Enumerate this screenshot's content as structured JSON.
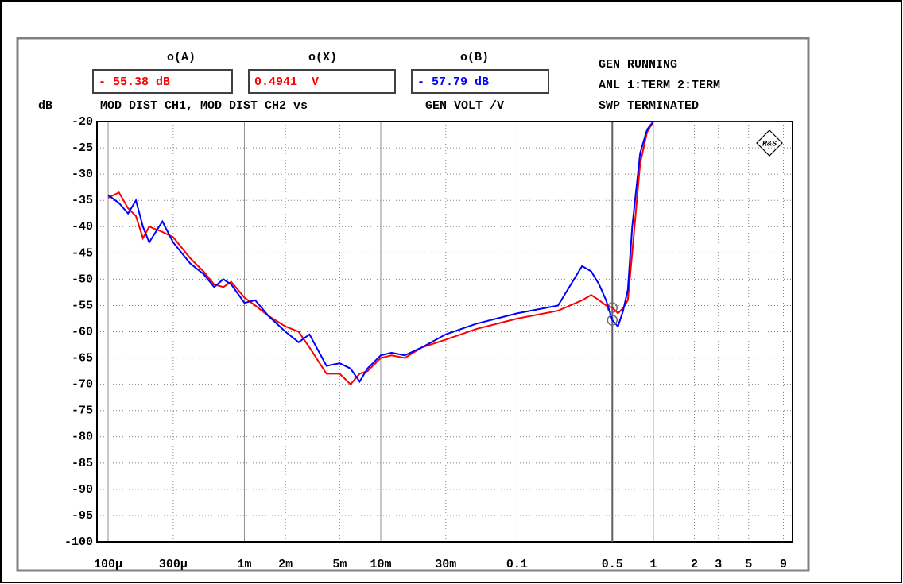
{
  "chart_data": {
    "type": "line",
    "header_labels": [
      "o(A)",
      "o(X)",
      "o(B)"
    ],
    "readouts": [
      {
        "text": "- 55.38 dB",
        "color": "#ff0000"
      },
      {
        "text": "0.4941  V",
        "color": "#ff0000"
      },
      {
        "text": "- 57.79 dB",
        "color": "#0000ff"
      }
    ],
    "title": "MOD DIST CH1, MOD DIST CH2 vs",
    "xlabel": "GEN VOLT /V",
    "ylabel": "dB",
    "status": [
      "GEN RUNNING",
      "ANL 1:TERM 2:TERM",
      "SWP TERMINATED"
    ],
    "x": [
      0.0001,
      0.00012,
      0.00014,
      0.00016,
      0.00018,
      0.0002,
      0.00025,
      0.0003,
      0.0004,
      0.0005,
      0.0006,
      0.0007,
      0.0008,
      0.001,
      0.0012,
      0.0015,
      0.002,
      0.0025,
      0.003,
      0.004,
      0.005,
      0.006,
      0.007,
      0.008,
      0.01,
      0.012,
      0.015,
      0.02,
      0.03,
      0.05,
      0.1,
      0.2,
      0.3,
      0.35,
      0.4,
      0.45,
      0.5,
      0.55,
      0.6,
      0.65,
      0.7,
      0.8,
      0.9,
      1,
      2,
      5,
      10
    ],
    "series": [
      {
        "name": "MOD DIST CH1",
        "color": "#ff0000",
        "values": [
          -34.5,
          -33.5,
          -36.5,
          -38,
          -42.2,
          -40,
          -41,
          -42,
          -46,
          -48.5,
          -51,
          -51.5,
          -50.5,
          -53.5,
          -55,
          -57,
          -59,
          -60,
          -63,
          -68,
          -68,
          -70,
          -68,
          -67.5,
          -65,
          -64.5,
          -65,
          -63,
          -61.5,
          -59.5,
          -57.5,
          -56,
          -54,
          -53,
          -54,
          -55,
          -55.4,
          -56.5,
          -55.5,
          -54,
          -45,
          -28,
          -22,
          -20,
          -20,
          -20,
          -20
        ]
      },
      {
        "name": "MOD DIST CH2",
        "color": "#0000ff",
        "values": [
          -34,
          -35.5,
          -37.5,
          -35,
          -40,
          -43,
          -39,
          -43,
          -47,
          -49,
          -51.5,
          -50,
          -51,
          -54.5,
          -54,
          -57,
          -60,
          -62,
          -60.5,
          -66.5,
          -66,
          -67,
          -69.5,
          -67,
          -64.5,
          -64,
          -64.5,
          -63,
          -60.5,
          -58.5,
          -56.5,
          -55,
          -47.5,
          -48.5,
          -51,
          -54,
          -57.8,
          -59,
          -56,
          -52,
          -40,
          -26,
          -21.5,
          -20,
          -20,
          -20,
          -20
        ]
      }
    ],
    "cursor": 0.5,
    "xscale": "log",
    "xlim": [
      8.28e-05,
      10.5
    ],
    "ylim": [
      -100,
      -20
    ],
    "xticks": [
      {
        "value": 0.0001,
        "label": "100µ"
      },
      {
        "value": 0.0003,
        "label": "300µ"
      },
      {
        "value": 0.001,
        "label": "1m"
      },
      {
        "value": 0.002,
        "label": "2m"
      },
      {
        "value": 0.005,
        "label": "5m"
      },
      {
        "value": 0.01,
        "label": "10m"
      },
      {
        "value": 0.03,
        "label": "30m"
      },
      0.1,
      0.5,
      1,
      2,
      3,
      5,
      9
    ],
    "yticks": [
      -20,
      -25,
      -30,
      -35,
      -40,
      -45,
      -50,
      -55,
      -60,
      -65,
      -70,
      -75,
      -80,
      -85,
      -90,
      -95,
      -100
    ],
    "grid": true
  }
}
